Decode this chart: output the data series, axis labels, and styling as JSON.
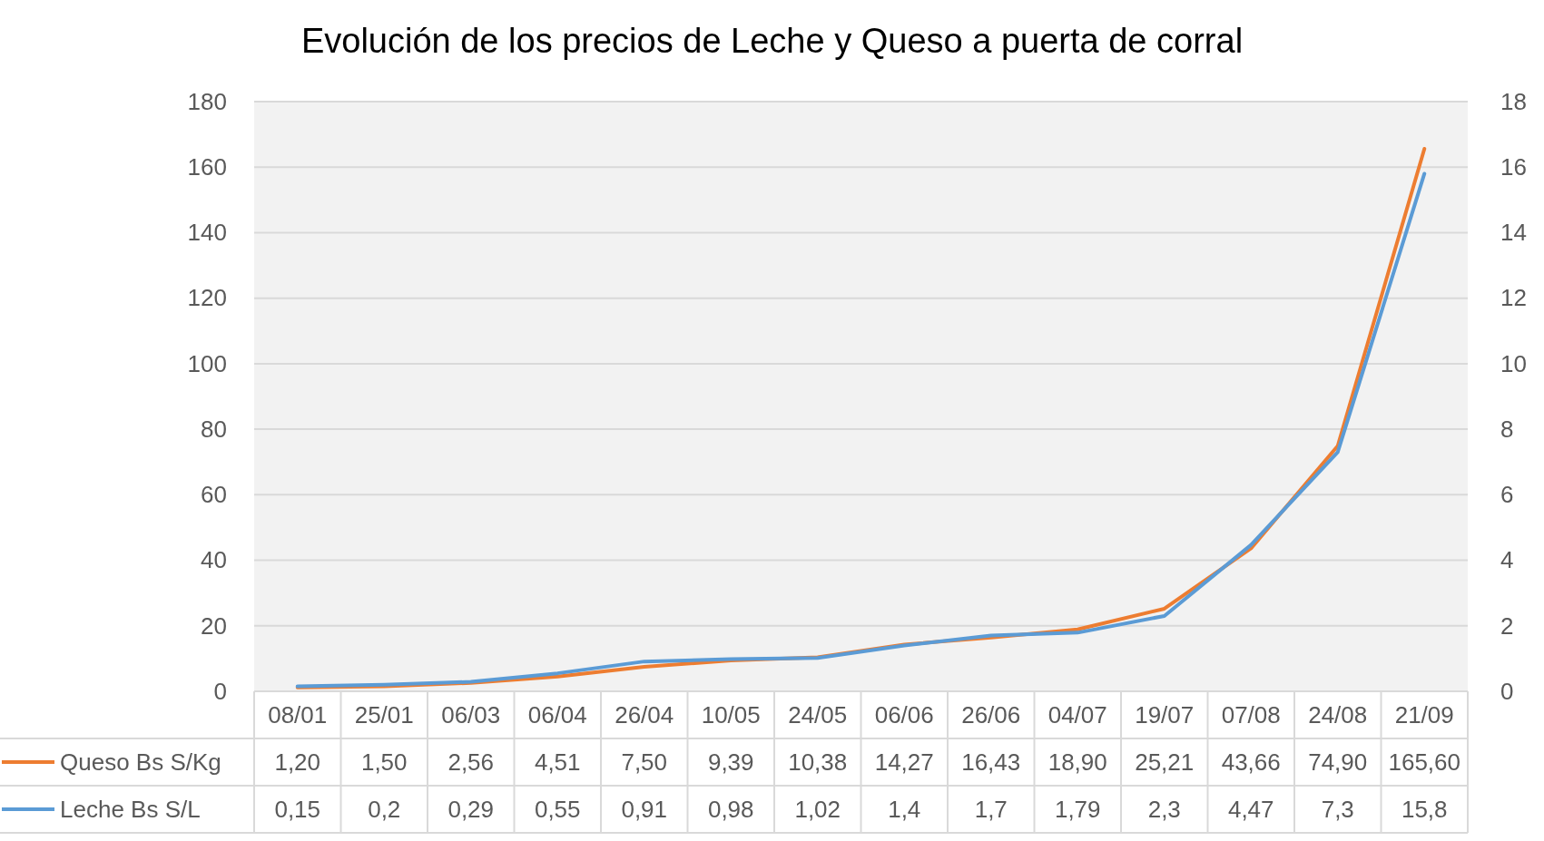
{
  "chart_data": {
    "type": "line",
    "title": "Evolución de los precios de Leche y Queso a puerta de corral",
    "categories": [
      "08/01",
      "25/01",
      "06/03",
      "06/04",
      "26/04",
      "10/05",
      "24/05",
      "06/06",
      "26/06",
      "04/07",
      "19/07",
      "07/08",
      "24/08",
      "21/09"
    ],
    "series": [
      {
        "name": "Queso Bs S/Kg",
        "color": "#ed7d31",
        "values": [
          1.2,
          1.5,
          2.56,
          4.51,
          7.5,
          9.39,
          10.38,
          14.27,
          16.43,
          18.9,
          25.21,
          43.66,
          74.9,
          165.6
        ],
        "value_labels": [
          "1,20",
          "1,50",
          "2,56",
          "4,51",
          "7,50",
          "9,39",
          "10,38",
          "14,27",
          "16,43",
          "18,90",
          "25,21",
          "43,66",
          "74,90",
          "165,60"
        ]
      },
      {
        "name": "Leche Bs S/L",
        "color": "#5b9bd5",
        "axis": "y2",
        "values": [
          0.15,
          0.2,
          0.29,
          0.55,
          0.91,
          0.98,
          1.02,
          1.4,
          1.7,
          1.79,
          2.3,
          4.47,
          7.3,
          15.8
        ],
        "value_labels": [
          "0,15",
          "0,2",
          "0,29",
          "0,55",
          "0,91",
          "0,98",
          "1,02",
          "1,4",
          "1,7",
          "1,79",
          "2,3",
          "4,47",
          "7,3",
          "15,8"
        ]
      }
    ],
    "ylim": [
      0,
      180
    ],
    "yticks": [
      0,
      20,
      40,
      60,
      80,
      100,
      120,
      140,
      160,
      180
    ],
    "y2lim": [
      0,
      18
    ],
    "y2ticks": [
      0,
      2,
      4,
      6,
      8,
      10,
      12,
      14,
      16,
      18
    ],
    "grid": "y",
    "legend": "bottom left",
    "marker": "none",
    "line_style": "solid"
  }
}
